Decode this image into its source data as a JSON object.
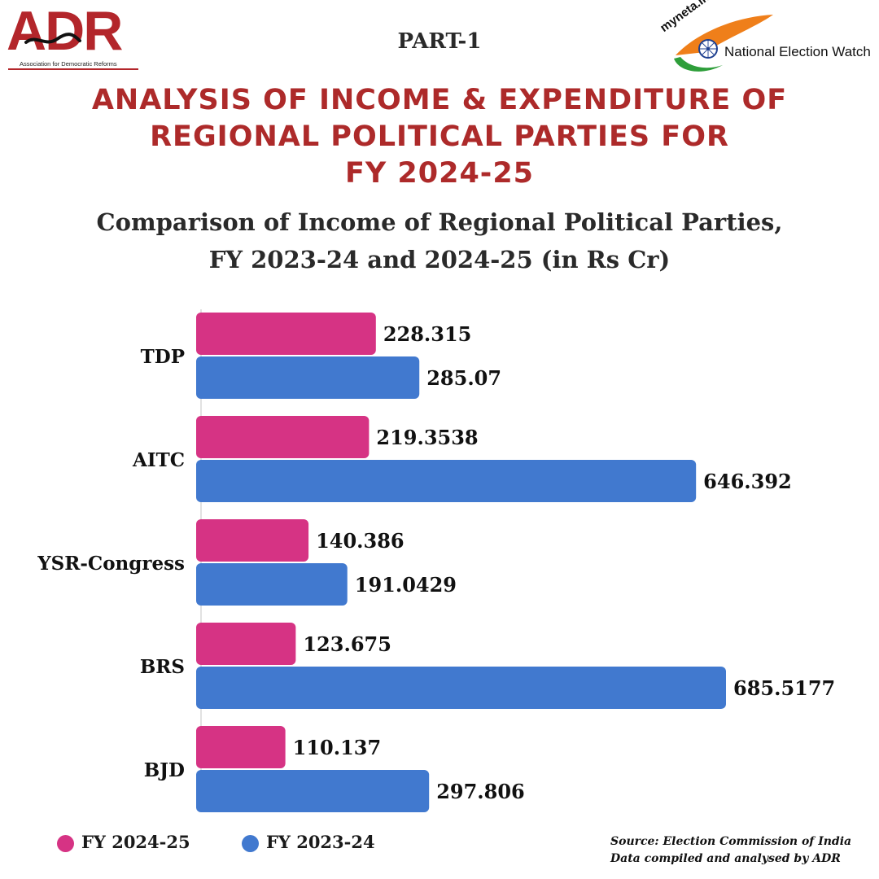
{
  "header": {
    "adr_logo_text": "ADR",
    "adr_logo_subtitle": "Association for Democratic Reforms",
    "part_label": "PART-1",
    "myneta_text": "myneta.info",
    "new_text": "National Election Watch"
  },
  "title_lines": [
    "ANALYSIS OF INCOME & EXPENDITURE OF",
    "REGIONAL POLITICAL PARTIES FOR",
    "FY 2024-25"
  ],
  "subtitle_lines": [
    "Comparison of Income of Regional Political Parties,",
    "FY 2023-24 and 2024-25 (in Rs Cr)"
  ],
  "colors": {
    "title": "#ad2a2a",
    "fy2024_25": "#d63384",
    "fy2023_24": "#4179cf",
    "adr_red": "#b3262b"
  },
  "chart_data": {
    "type": "bar",
    "orientation": "horizontal",
    "categories": [
      "TDP",
      "AITC",
      "YSR-Congress",
      "BRS",
      "BJD"
    ],
    "series": [
      {
        "name": "FY 2024-25",
        "color": "#d63384",
        "values": [
          228.315,
          219.3538,
          140.386,
          123.675,
          110.137
        ],
        "labels": [
          "228.315",
          "219.3538",
          "140.386",
          "123.675",
          "110.137"
        ]
      },
      {
        "name": "FY 2023-24",
        "color": "#4179cf",
        "values": [
          285.07,
          646.392,
          191.0429,
          685.5177,
          297.806
        ],
        "labels": [
          "285.07",
          "646.392",
          "191.0429",
          "685.5177",
          "297.806"
        ]
      }
    ],
    "xlim": [
      0,
      685.5177
    ],
    "grid": false,
    "legend_position": "bottom-left"
  },
  "legend": [
    {
      "label": "FY 2024-25",
      "color": "#d63384"
    },
    {
      "label": "FY 2023-24",
      "color": "#4179cf"
    }
  ],
  "source": {
    "line1": "Source: Election Commission of India",
    "line2": "Data compiled and analysed by ADR"
  }
}
